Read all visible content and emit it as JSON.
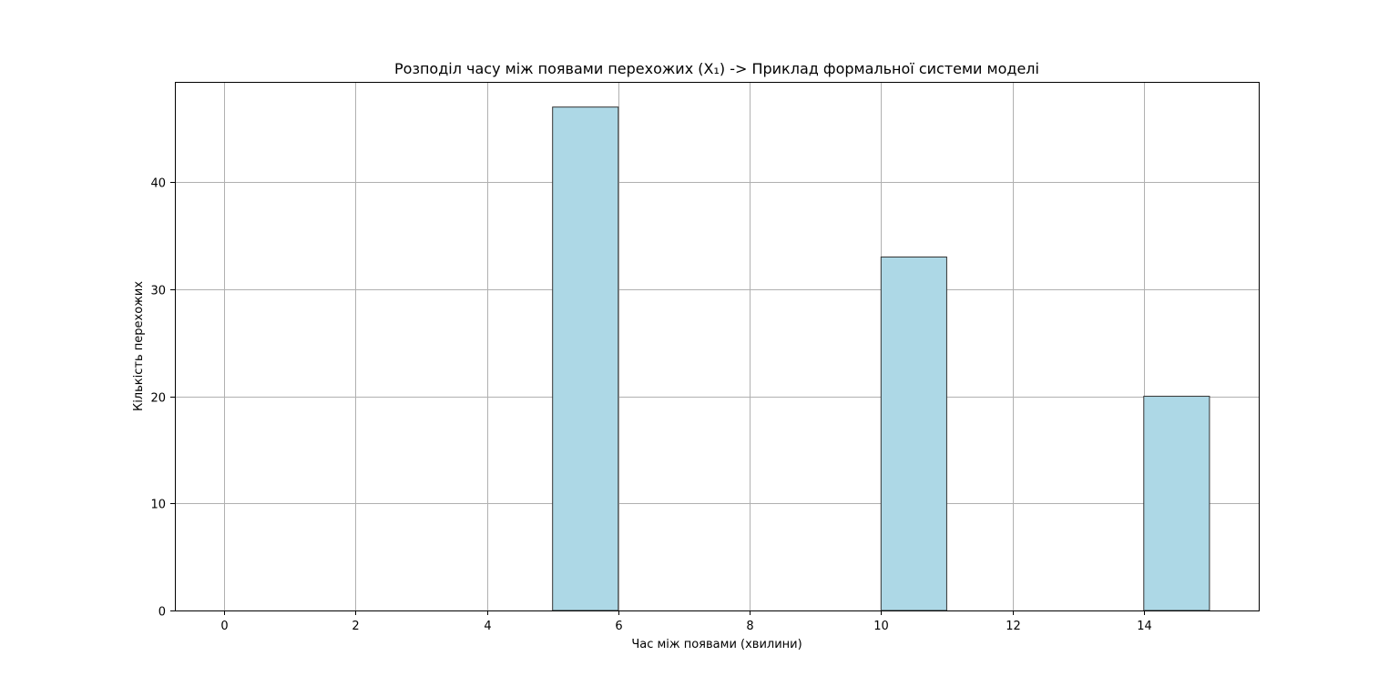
{
  "chart_data": {
    "type": "bar",
    "title": "Розподіл часу між появами перехожих (X₁) -> Приклад формальної системи моделі",
    "xlabel": "Час між появами (хвилини)",
    "ylabel": "Кількість перехожих",
    "xlim": [
      -0.75,
      15.75
    ],
    "ylim": [
      0,
      49.35
    ],
    "xticks": [
      0,
      2,
      4,
      6,
      8,
      10,
      12,
      14
    ],
    "yticks": [
      0,
      10,
      20,
      30,
      40
    ],
    "grid": true,
    "bins": [
      {
        "start": 5,
        "end": 6,
        "value": 47
      },
      {
        "start": 10,
        "end": 11,
        "value": 33
      },
      {
        "start": 14,
        "end": 15,
        "value": 20
      }
    ],
    "colors": {
      "bar_fill": "#add8e6",
      "bar_edge": "#333333",
      "grid": "#b0b0b0",
      "axis": "#000000"
    }
  }
}
